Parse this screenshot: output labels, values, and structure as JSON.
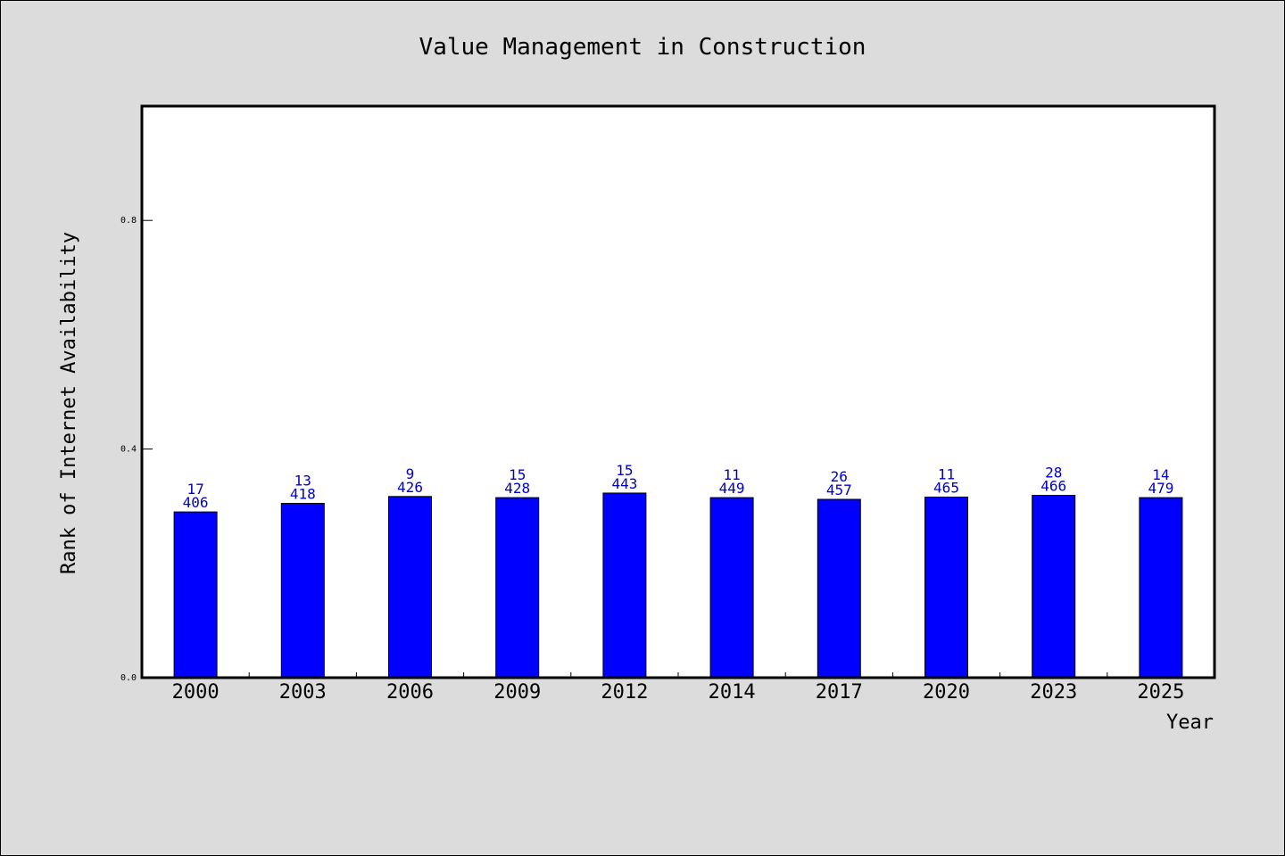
{
  "chart_data": {
    "type": "bar",
    "title": "Value Management in Construction",
    "xlabel": "Year",
    "ylabel": "Rank of Internet Availability",
    "ylim": [
      0,
      1.0
    ],
    "yticks": [
      "0.0",
      "0.4",
      "0.8"
    ],
    "ytick_values": [
      0.0,
      0.4,
      0.8
    ],
    "categories": [
      "2000",
      "2003",
      "2006",
      "2009",
      "2012",
      "2014",
      "2017",
      "2020",
      "2023",
      "2025"
    ],
    "values": [
      0.29,
      0.305,
      0.317,
      0.315,
      0.323,
      0.315,
      0.312,
      0.316,
      0.319,
      0.315
    ],
    "label_top": [
      "17",
      "13",
      "9",
      "15",
      "15",
      "11",
      "26",
      "11",
      "28",
      "14"
    ],
    "label_bottom": [
      "406",
      "418",
      "426",
      "428",
      "443",
      "449",
      "457",
      "465",
      "466",
      "479"
    ],
    "bar_color": "#0000ff",
    "label_color": "#0000cc",
    "background_color": "#dcdcdc",
    "plot_background": "#ffffff",
    "grid": false,
    "legend": "none"
  }
}
